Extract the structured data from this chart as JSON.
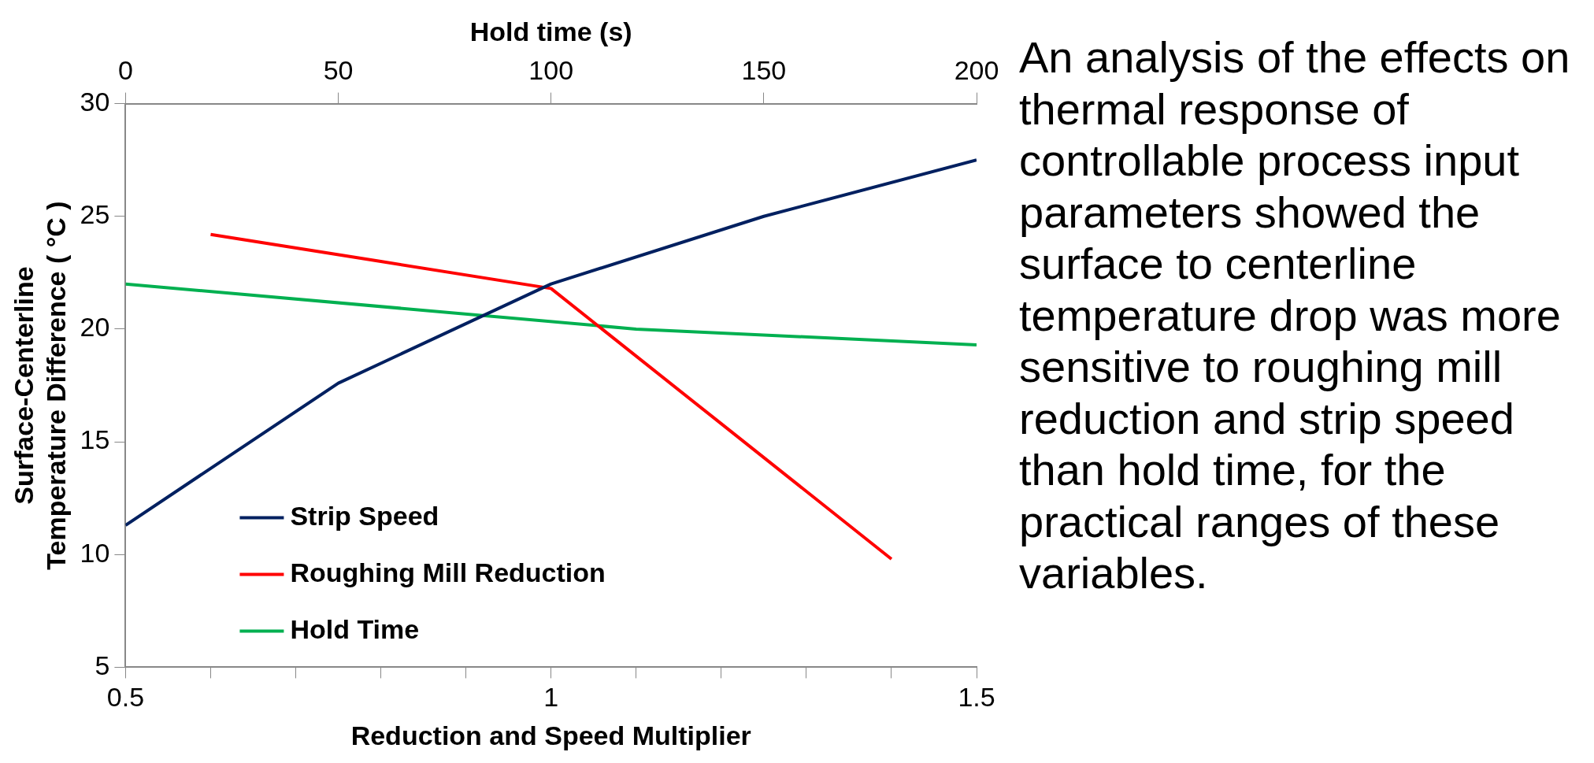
{
  "chart_data": {
    "type": "line",
    "xlabel": "Reduction and Speed Multiplier",
    "x2label": "Hold time (s)",
    "ylabel": "Surface-Centerline Temperature Difference ( °C )",
    "xlim": [
      0.5,
      1.5
    ],
    "xticks": [
      0.5,
      {
        "value": 0.6,
        "label": null
      },
      {
        "value": 0.7,
        "label": null
      },
      {
        "value": 0.8,
        "label": null
      },
      {
        "value": 0.9,
        "label": null
      },
      1,
      {
        "value": 1.1,
        "label": null
      },
      {
        "value": 1.2,
        "label": null
      },
      {
        "value": 1.3,
        "label": null
      },
      {
        "value": 1.4,
        "label": null
      },
      1.5
    ],
    "x2lim": [
      0,
      200
    ],
    "x2ticks": [
      0,
      50,
      100,
      150,
      200
    ],
    "ylim": [
      5,
      30
    ],
    "yticks": [
      5,
      10,
      15,
      20,
      25,
      30
    ],
    "grid": false,
    "legend": "bottom left",
    "marker": "none",
    "series": [
      {
        "name": "Strip Speed",
        "color": "#002060",
        "x": [
          0.5,
          0.75,
          1,
          1.25,
          1.5
        ],
        "values": [
          11.3,
          17.6,
          22,
          25,
          27.5
        ]
      },
      {
        "name": "Roughing Mill Reduction",
        "color": "#ff0000",
        "x": [
          0.6,
          0.8,
          1,
          1.2,
          1.4
        ],
        "values": [
          24.2,
          23,
          21.8,
          15.8,
          9.8
        ]
      },
      {
        "name": "Hold Time",
        "color": "#00b050",
        "axis": "x2",
        "x": [
          0,
          120,
          200
        ],
        "values": [
          22,
          20,
          19.3
        ]
      }
    ],
    "annotations": [
      "An analysis of the effects on thermal response of controllable process input parameters showed the surface to centerline temperature drop was more sensitive to roughing mill reduction and strip speed than hold time, for the practical ranges of these variables."
    ]
  }
}
